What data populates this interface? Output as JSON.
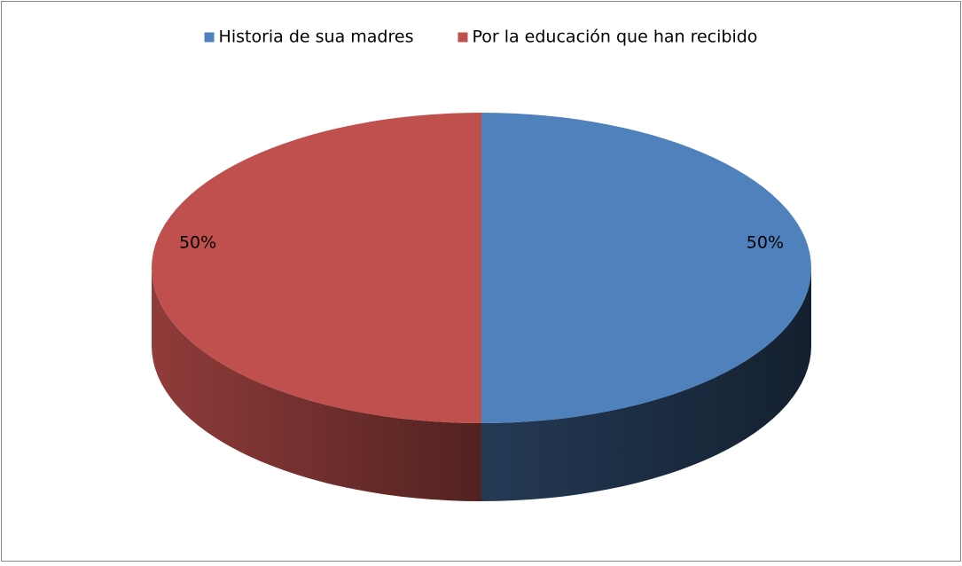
{
  "chart_data": {
    "type": "pie",
    "categories": [
      "Historia de sua madres",
      "Por la educación que han recibido"
    ],
    "values": [
      50,
      50
    ],
    "value_labels": [
      "50%",
      "50%"
    ],
    "colors": [
      "#4f81bd",
      "#c0504d"
    ],
    "legend": "top",
    "three_d": true
  }
}
